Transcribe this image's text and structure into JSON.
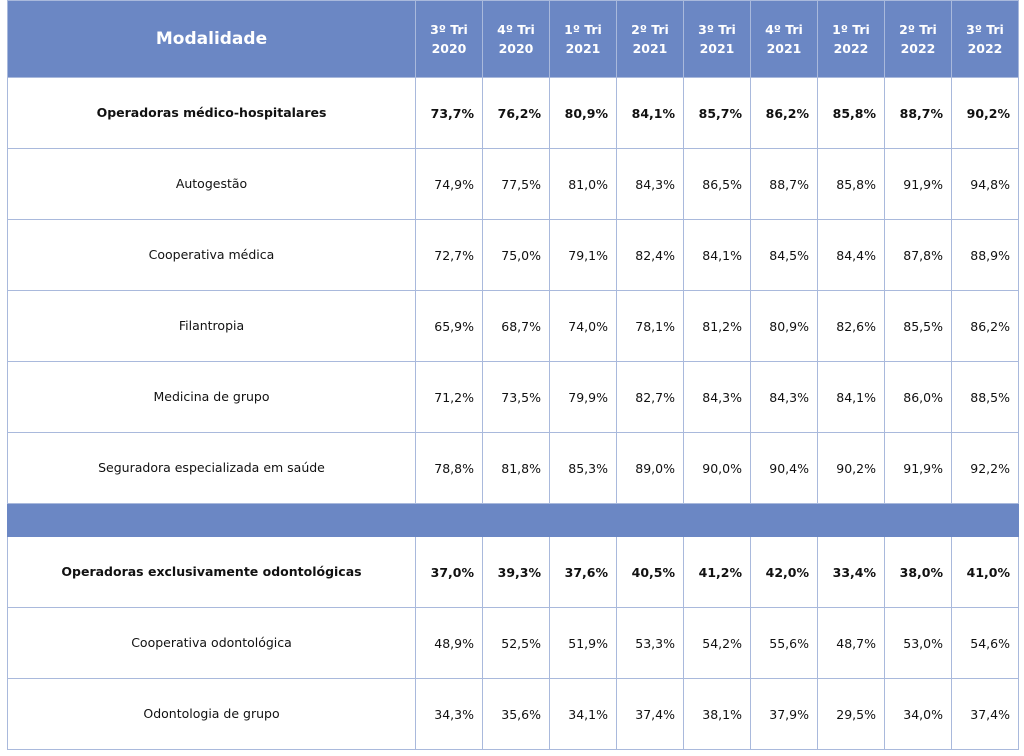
{
  "table": {
    "header": {
      "modalidade": "Modalidade",
      "periods": [
        {
          "line1": "3º Tri",
          "line2": "2020"
        },
        {
          "line1": "4º Tri",
          "line2": "2020"
        },
        {
          "line1": "1º Tri",
          "line2": "2021"
        },
        {
          "line1": "2º Tri",
          "line2": "2021"
        },
        {
          "line1": "3º Tri",
          "line2": "2021"
        },
        {
          "line1": "4º Tri",
          "line2": "2021"
        },
        {
          "line1": "1º Tri",
          "line2": "2022"
        },
        {
          "line1": "2º Tri",
          "line2": "2022"
        },
        {
          "line1": "3º Tri",
          "line2": "2022"
        }
      ]
    },
    "rows": [
      {
        "name": "Operadoras médico-hospitalares",
        "values": [
          "73,7%",
          "76,2%",
          "80,9%",
          "84,1%",
          "85,7%",
          "86,2%",
          "85,8%",
          "88,7%",
          "90,2%"
        ]
      },
      {
        "name": "Autogestão",
        "values": [
          "74,9%",
          "77,5%",
          "81,0%",
          "84,3%",
          "86,5%",
          "88,7%",
          "85,8%",
          "91,9%",
          "94,8%"
        ]
      },
      {
        "name": "Cooperativa médica",
        "values": [
          "72,7%",
          "75,0%",
          "79,1%",
          "82,4%",
          "84,1%",
          "84,5%",
          "84,4%",
          "87,8%",
          "88,9%"
        ]
      },
      {
        "name": "Filantropia",
        "values": [
          "65,9%",
          "68,7%",
          "74,0%",
          "78,1%",
          "81,2%",
          "80,9%",
          "82,6%",
          "85,5%",
          "86,2%"
        ]
      },
      {
        "name": "Medicina de grupo",
        "values": [
          "71,2%",
          "73,5%",
          "79,9%",
          "82,7%",
          "84,3%",
          "84,3%",
          "84,1%",
          "86,0%",
          "88,5%"
        ]
      },
      {
        "name": "Seguradora especializada em saúde",
        "values": [
          "78,8%",
          "81,8%",
          "85,3%",
          "89,0%",
          "90,0%",
          "90,4%",
          "90,2%",
          "91,9%",
          "92,2%"
        ]
      },
      {
        "name": "Operadoras exclusivamente odontológicas",
        "values": [
          "37,0%",
          "39,3%",
          "37,6%",
          "40,5%",
          "41,2%",
          "42,0%",
          "33,4%",
          "38,0%",
          "41,0%"
        ]
      },
      {
        "name": "Cooperativa odontológica",
        "values": [
          "48,9%",
          "52,5%",
          "51,9%",
          "53,3%",
          "54,2%",
          "55,6%",
          "48,7%",
          "53,0%",
          "54,6%"
        ]
      },
      {
        "name": "Odontologia de grupo",
        "values": [
          "34,3%",
          "35,6%",
          "34,1%",
          "37,4%",
          "38,1%",
          "37,9%",
          "29,5%",
          "34,0%",
          "37,4%"
        ]
      }
    ]
  }
}
